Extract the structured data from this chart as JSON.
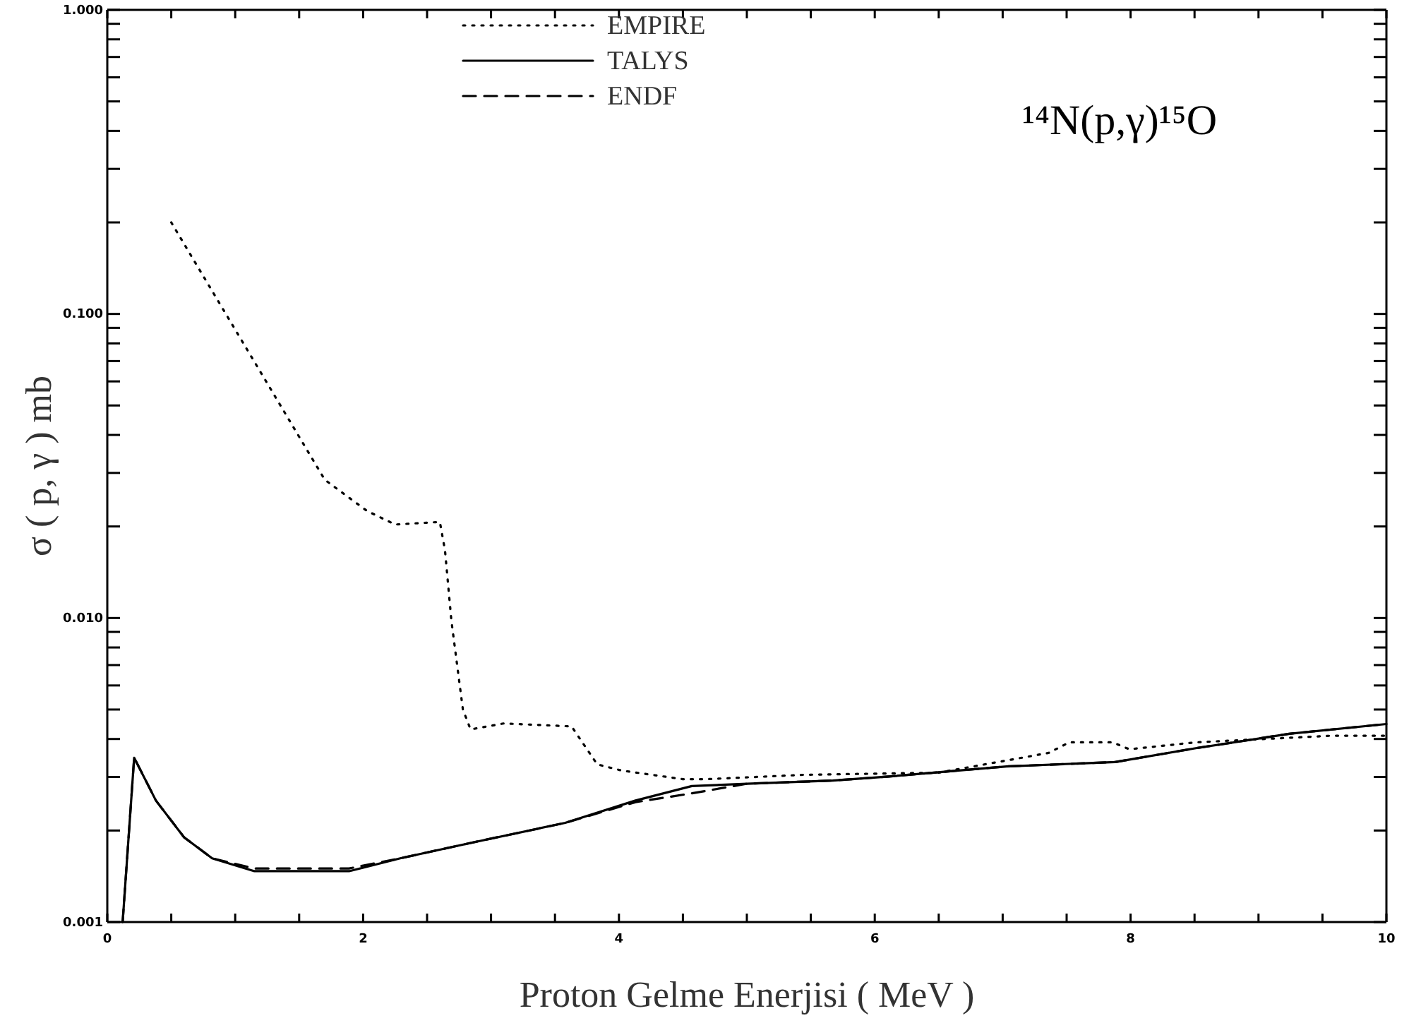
{
  "chart_data": {
    "type": "line",
    "title": "¹⁴N(p,γ)¹⁵O",
    "xlabel": "Proton Gelme Enerjisi ( MeV )",
    "ylabel": "σ ( p, γ ) mb",
    "log": "y",
    "legend": "top",
    "grid": false,
    "marker": "none",
    "xlim": [
      0,
      10
    ],
    "ylim": [
      0.001,
      1
    ],
    "xticks": [
      0,
      {
        "value": 0.5,
        "label": null
      },
      {
        "value": 1,
        "label": null
      },
      {
        "value": 1.5,
        "label": null
      },
      2,
      {
        "value": 2.5,
        "label": null
      },
      {
        "value": 3,
        "label": null
      },
      {
        "value": 3.5,
        "label": null
      },
      4,
      {
        "value": 4.5,
        "label": null
      },
      {
        "value": 5,
        "label": null
      },
      {
        "value": 5.5,
        "label": null
      },
      6,
      {
        "value": 6.5,
        "label": null
      },
      {
        "value": 7,
        "label": null
      },
      {
        "value": 7.5,
        "label": null
      },
      8,
      {
        "value": 8.5,
        "label": null
      },
      {
        "value": 9,
        "label": null
      },
      {
        "value": 9.5,
        "label": null
      },
      10
    ],
    "yticks": [
      {
        "value": 0.001,
        "label": "0.001"
      },
      {
        "value": 0.002,
        "label": null
      },
      {
        "value": 0.003,
        "label": null
      },
      {
        "value": 0.004,
        "label": null
      },
      {
        "value": 0.005,
        "label": null
      },
      {
        "value": 0.006,
        "label": null
      },
      {
        "value": 0.007,
        "label": null
      },
      {
        "value": 0.008,
        "label": null
      },
      {
        "value": 0.009,
        "label": null
      },
      {
        "value": 0.01,
        "label": "0.010"
      },
      {
        "value": 0.02,
        "label": null
      },
      {
        "value": 0.03,
        "label": null
      },
      {
        "value": 0.04,
        "label": null
      },
      {
        "value": 0.05,
        "label": null
      },
      {
        "value": 0.06,
        "label": null
      },
      {
        "value": 0.07,
        "label": null
      },
      {
        "value": 0.08,
        "label": null
      },
      {
        "value": 0.09,
        "label": null
      },
      {
        "value": 0.1,
        "label": "0.100"
      },
      {
        "value": 0.2,
        "label": null
      },
      {
        "value": 0.3,
        "label": null
      },
      {
        "value": 0.4,
        "label": null
      },
      {
        "value": 0.5,
        "label": null
      },
      {
        "value": 0.6,
        "label": null
      },
      {
        "value": 0.7,
        "label": null
      },
      {
        "value": 0.8,
        "label": null
      },
      {
        "value": 0.9,
        "label": null
      },
      {
        "value": 1,
        "label": "1.000"
      }
    ],
    "series": [
      {
        "name": "EMPIRE",
        "color": "#000000",
        "line_style": "dotted",
        "x": [
          0.5,
          1.7,
          2.03,
          2.25,
          2.6,
          2.64,
          2.69,
          2.78,
          2.84,
          3.1,
          3.63,
          3.83,
          4.02,
          4.5,
          4.68,
          5.45,
          6.5,
          7.36,
          7.52,
          7.86,
          7.99,
          8.51,
          9.57,
          10
        ],
        "values": [
          0.2,
          0.0285,
          0.0225,
          0.0203,
          0.0207,
          0.0167,
          0.0098,
          0.005,
          0.0043,
          0.0045,
          0.0044,
          0.0033,
          0.00315,
          0.00295,
          0.00295,
          0.00305,
          0.0031,
          0.0036,
          0.0039,
          0.0039,
          0.0037,
          0.0039,
          0.0041,
          0.0041
        ]
      },
      {
        "name": "TALYS",
        "color": "#000000",
        "line_style": "solid",
        "x": [
          0.12,
          0.21,
          0.38,
          0.6,
          0.82,
          1.15,
          1.89,
          2.29,
          2.84,
          3.58,
          4.13,
          4.57,
          5.0,
          5.67,
          6.11,
          7.03,
          7.88,
          8.51,
          9.24,
          10
        ],
        "values": [
          0.001,
          0.00347,
          0.00251,
          0.0019,
          0.00162,
          0.00147,
          0.00147,
          0.00162,
          0.00182,
          0.00212,
          0.00251,
          0.0028,
          0.00285,
          0.00292,
          0.00301,
          0.00325,
          0.00336,
          0.00373,
          0.00416,
          0.00448
        ]
      },
      {
        "name": "ENDF",
        "color": "#000000",
        "line_style": "dashed",
        "x": [
          0.12,
          0.21,
          0.38,
          0.6,
          0.82,
          1.15,
          1.89,
          2.29,
          2.84,
          3.58,
          4.13,
          4.57,
          5.0,
          5.67,
          6.11,
          7.03,
          7.88,
          8.51,
          9.24,
          10
        ],
        "values": [
          0.001,
          0.00347,
          0.00251,
          0.0019,
          0.00162,
          0.0015,
          0.0015,
          0.00162,
          0.00182,
          0.00212,
          0.00248,
          0.00265,
          0.00285,
          0.00292,
          0.00301,
          0.00325,
          0.00336,
          0.00373,
          0.00416,
          0.00448
        ]
      }
    ]
  }
}
